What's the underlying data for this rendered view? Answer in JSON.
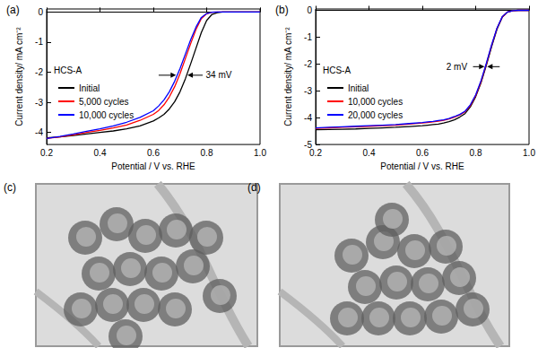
{
  "chart_data": [
    {
      "type": "line",
      "title": "(a)",
      "x_label": "Potential / V vs. RHE",
      "y_label": "Current density/ mA cm⁻²",
      "legend_title": "HCS-A",
      "legend": "upper left",
      "grid": false,
      "x": [
        0.2,
        0.25,
        0.3,
        0.35,
        0.4,
        0.45,
        0.5,
        0.55,
        0.6,
        0.62,
        0.64,
        0.66,
        0.68,
        0.7,
        0.72,
        0.74,
        0.76,
        0.78,
        0.8,
        0.82,
        0.84,
        0.86,
        0.88,
        0.9,
        0.92,
        0.94,
        0.96,
        1.0
      ],
      "xlim": [
        0.2,
        1.0
      ],
      "xticks": [
        0.2,
        0.4,
        0.6,
        0.8,
        {
          "value": 1.0,
          "label": "1.0"
        }
      ],
      "ylim": [
        -4.4,
        0.1
      ],
      "yticks": [
        -4,
        -3,
        -2,
        -1,
        0
      ],
      "series": [
        {
          "name": "Initial",
          "color": "#000000",
          "values": [
            -4.18,
            -4.15,
            -4.1,
            -4.05,
            -4.0,
            -3.95,
            -3.88,
            -3.78,
            -3.62,
            -3.52,
            -3.4,
            -3.22,
            -2.98,
            -2.65,
            -2.22,
            -1.72,
            -1.2,
            -0.68,
            -0.28,
            -0.08,
            -0.02,
            0,
            0,
            0,
            0,
            0,
            0,
            0
          ]
        },
        {
          "name": "5,000 cycles",
          "color": "#ff0000",
          "values": [
            -4.2,
            -4.15,
            -4.08,
            -4.0,
            -3.93,
            -3.85,
            -3.75,
            -3.6,
            -3.4,
            -3.27,
            -3.08,
            -2.82,
            -2.48,
            -2.05,
            -1.55,
            -1.05,
            -0.58,
            -0.22,
            -0.06,
            -0.01,
            0,
            0,
            0,
            0,
            0,
            0,
            0,
            0
          ]
        },
        {
          "name": "10,000 cycles",
          "color": "#0000ff",
          "values": [
            -4.2,
            -4.13,
            -4.05,
            -3.96,
            -3.88,
            -3.78,
            -3.66,
            -3.5,
            -3.28,
            -3.12,
            -2.92,
            -2.65,
            -2.3,
            -1.88,
            -1.4,
            -0.92,
            -0.5,
            -0.18,
            -0.05,
            -0.01,
            0,
            0,
            0,
            0,
            0,
            0,
            0,
            0
          ]
        }
      ],
      "annotations": [
        {
          "text": "34 mV",
          "x": 0.79,
          "y": -2.1,
          "arrows": [
            {
              "from": 0.62,
              "to": 0.685
            },
            {
              "from": 0.785,
              "to": 0.728
            }
          ]
        }
      ]
    },
    {
      "type": "line",
      "title": "(b)",
      "x_label": "Potential / V vs. RHE",
      "y_label": "Current density/ mA cm⁻²",
      "legend_title": "HCS-A",
      "legend": "upper left",
      "grid": false,
      "x": [
        0.2,
        0.25,
        0.3,
        0.35,
        0.4,
        0.45,
        0.5,
        0.55,
        0.6,
        0.62,
        0.64,
        0.66,
        0.68,
        0.7,
        0.72,
        0.74,
        0.76,
        0.78,
        0.8,
        0.82,
        0.84,
        0.86,
        0.88,
        0.9,
        0.92,
        0.94,
        0.96,
        1.0
      ],
      "xlim": [
        0.2,
        1.0
      ],
      "xticks": [
        0.2,
        0.4,
        0.6,
        0.8,
        {
          "value": 1.0,
          "label": "1.0"
        }
      ],
      "ylim": [
        -5,
        0.05
      ],
      "yticks": [
        -5,
        -4,
        -3,
        -2,
        -1,
        0
      ],
      "series": [
        {
          "name": "Initial",
          "color": "#000000",
          "values": [
            -4.45,
            -4.44,
            -4.43,
            -4.42,
            -4.4,
            -4.38,
            -4.36,
            -4.33,
            -4.3,
            -4.28,
            -4.26,
            -4.24,
            -4.2,
            -4.15,
            -4.08,
            -3.98,
            -3.85,
            -3.6,
            -3.22,
            -2.7,
            -2.05,
            -1.35,
            -0.7,
            -0.25,
            -0.06,
            -0.01,
            0,
            0
          ]
        },
        {
          "name": "10,000 cycles",
          "color": "#ff0000",
          "values": [
            -4.4,
            -4.38,
            -4.36,
            -4.34,
            -4.32,
            -4.3,
            -4.28,
            -4.24,
            -4.2,
            -4.18,
            -4.16,
            -4.13,
            -4.1,
            -4.05,
            -3.98,
            -3.9,
            -3.78,
            -3.55,
            -3.18,
            -2.66,
            -2.0,
            -1.3,
            -0.67,
            -0.24,
            -0.06,
            -0.01,
            0,
            0
          ]
        },
        {
          "name": "20,000 cycles",
          "color": "#0000ff",
          "values": [
            -4.38,
            -4.36,
            -4.34,
            -4.32,
            -4.3,
            -4.28,
            -4.26,
            -4.22,
            -4.18,
            -4.16,
            -4.14,
            -4.11,
            -4.08,
            -4.03,
            -3.96,
            -3.88,
            -3.76,
            -3.52,
            -3.15,
            -2.62,
            -1.97,
            -1.28,
            -0.66,
            -0.23,
            -0.06,
            -0.01,
            0,
            0
          ]
        }
      ],
      "annotations": [
        {
          "text": "2 mV",
          "x": 0.775,
          "y": -2.1,
          "arrows": [
            {
              "from": 0.79,
              "to": 0.833
            },
            {
              "from": 0.89,
              "to": 0.843
            }
          ]
        }
      ]
    }
  ],
  "images": [
    {
      "label": "(c)"
    },
    {
      "label": "(d)"
    }
  ]
}
